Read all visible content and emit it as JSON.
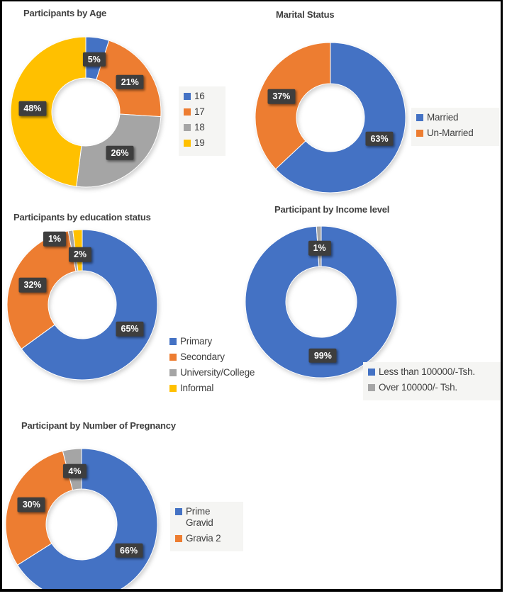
{
  "colors": {
    "blue": "#4472C4",
    "orange": "#ED7D31",
    "gray": "#A5A5A5",
    "yellow": "#FFC000",
    "label_box": "#3e3e3e",
    "label_text": "#ffffff",
    "title_text": "#3f3f3f",
    "legend_text": "#404040",
    "legend_background": "#f5f5f3",
    "page_border": "#000000",
    "page_background": "#ffffff"
  },
  "chart_data": [
    {
      "type": "pie",
      "subtype": "donut",
      "title": "Participants by Age",
      "unit": "percent",
      "slices": [
        {
          "name": "16",
          "value": 5,
          "display": "5%",
          "color": "#4472C4"
        },
        {
          "name": "17",
          "value": 21,
          "display": "21%",
          "color": "#ED7D31"
        },
        {
          "name": "18",
          "value": 26,
          "display": "26%",
          "color": "#A5A5A5"
        },
        {
          "name": "19",
          "value": 48,
          "display": "48%",
          "color": "#FFC000"
        }
      ],
      "legend": {
        "position": "right",
        "items": [
          {
            "label": "16",
            "color": "#4472C4"
          },
          {
            "label": "17",
            "color": "#ED7D31"
          },
          {
            "label": "18",
            "color": "#A5A5A5"
          },
          {
            "label": "19",
            "color": "#FFC000"
          }
        ]
      }
    },
    {
      "type": "pie",
      "subtype": "donut",
      "title": "Marital Status",
      "unit": "percent",
      "slices": [
        {
          "name": "Married",
          "value": 63,
          "display": "63%",
          "color": "#4472C4"
        },
        {
          "name": "Un-Married",
          "value": 37,
          "display": "37%",
          "color": "#ED7D31"
        }
      ],
      "legend": {
        "position": "right",
        "items": [
          {
            "label": "Married",
            "color": "#4472C4"
          },
          {
            "label": "Un-Married",
            "color": "#ED7D31"
          }
        ]
      }
    },
    {
      "type": "pie",
      "subtype": "donut",
      "title": "Participants by education status",
      "unit": "percent",
      "slices": [
        {
          "name": "Primary",
          "value": 65,
          "display": "65%",
          "color": "#4472C4"
        },
        {
          "name": "Secondary",
          "value": 32,
          "display": "32%",
          "color": "#ED7D31"
        },
        {
          "name": "University/College",
          "value": 1,
          "display": "1%",
          "color": "#A5A5A5"
        },
        {
          "name": "Informal",
          "value": 2,
          "display": "2%",
          "color": "#FFC000"
        }
      ],
      "legend": {
        "position": "right",
        "items": [
          {
            "label": "Primary",
            "color": "#4472C4"
          },
          {
            "label": "Secondary",
            "color": "#ED7D31"
          },
          {
            "label": "University/College",
            "color": "#A5A5A5"
          },
          {
            "label": "Informal",
            "color": "#FFC000"
          }
        ]
      }
    },
    {
      "type": "pie",
      "subtype": "donut",
      "title": "Participant by Income level",
      "unit": "percent",
      "slices": [
        {
          "name": "Less than 100000/-Tsh.",
          "value": 99,
          "display": "99%",
          "color": "#4472C4"
        },
        {
          "name": "Over 100000/- Tsh.",
          "value": 1,
          "display": "1%",
          "color": "#A5A5A5"
        }
      ],
      "legend": {
        "position": "right",
        "items": [
          {
            "label": "Less than 100000/-Tsh.",
            "color": "#4472C4"
          },
          {
            "label": "Over 100000/- Tsh.",
            "color": "#A5A5A5"
          }
        ]
      }
    },
    {
      "type": "pie",
      "subtype": "donut",
      "title": "Participant by Number of Pregnancy",
      "unit": "percent",
      "slices": [
        {
          "name": "Prime Gravid",
          "value": 66,
          "display": "66%",
          "color": "#4472C4"
        },
        {
          "name": "Gravia 2",
          "value": 30,
          "display": "30%",
          "color": "#ED7D31"
        },
        {
          "name": "",
          "value": 4,
          "display": "4%",
          "color": "#A5A5A5"
        }
      ],
      "legend": {
        "position": "right",
        "items": [
          {
            "label": "Prime Gravid",
            "color": "#4472C4"
          },
          {
            "label": "Gravia 2",
            "color": "#ED7D31"
          }
        ]
      }
    }
  ]
}
